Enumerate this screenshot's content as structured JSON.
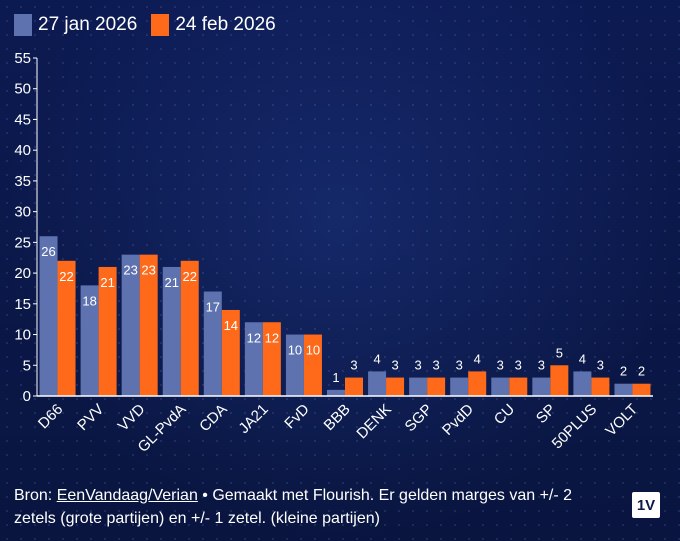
{
  "legend": {
    "series1_label": "27 jan 2026",
    "series2_label": "24 feb 2026"
  },
  "colors": {
    "series1": "#5e72b0",
    "series2": "#ff6a1a",
    "axis": "#ffffff",
    "text": "#ffffff"
  },
  "footer": {
    "prefix": "Bron: ",
    "link": "EenVandaag/Verian",
    "suffix": " • Gemaakt met Flourish. Er gelden marges van +/- 2 zetels (grote partijen) en +/- 1 zetel. (kleine partijen)"
  },
  "logo": "1V",
  "chart_data": {
    "type": "bar",
    "title": "",
    "xlabel": "",
    "ylabel": "",
    "ylim": [
      0,
      55
    ],
    "yticks": [
      0,
      5,
      10,
      15,
      20,
      25,
      30,
      35,
      40,
      45,
      50,
      55
    ],
    "categories": [
      "D66",
      "PVV",
      "VVD",
      "GL-PvdA",
      "CDA",
      "JA21",
      "FvD",
      "BBB",
      "DENK",
      "SGP",
      "PvdD",
      "CU",
      "SP",
      "50PLUS",
      "VOLT"
    ],
    "series": [
      {
        "name": "27 jan 2026",
        "values": [
          26,
          18,
          23,
          21,
          17,
          12,
          10,
          1,
          4,
          3,
          3,
          3,
          3,
          4,
          2
        ]
      },
      {
        "name": "24 feb 2026",
        "values": [
          22,
          21,
          23,
          22,
          14,
          12,
          10,
          3,
          3,
          3,
          4,
          3,
          5,
          3,
          2
        ]
      }
    ],
    "legend_position": "top-left"
  }
}
